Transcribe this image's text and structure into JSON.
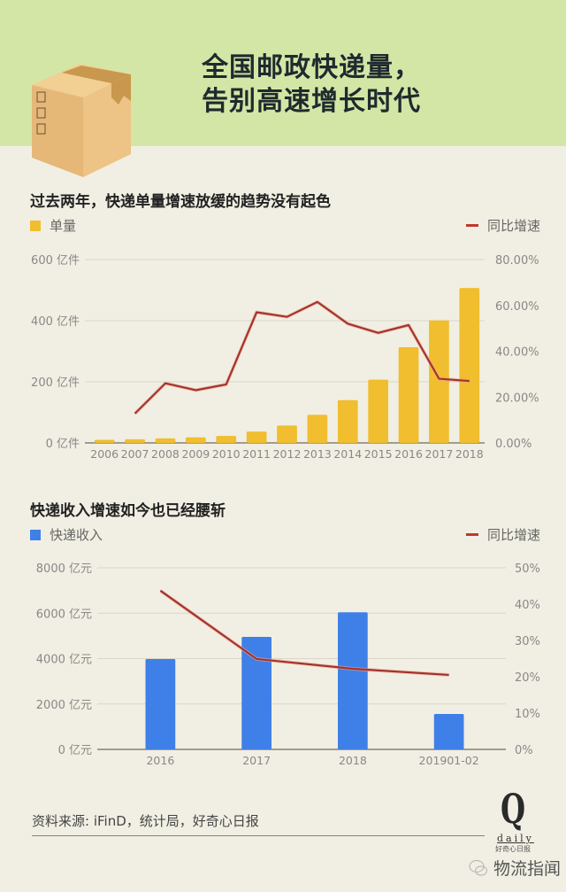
{
  "header": {
    "title_line1": "全国邮政快递量，",
    "title_line2": "告别高速增长时代",
    "bg_color": "#d4e6a6"
  },
  "chart1": {
    "section_title": "过去两年，快递单量增速放缓的趋势没有起色",
    "legend_bar": "单量",
    "legend_line": "同比增速"
  },
  "chart2": {
    "section_title": "快递收入增速如今也已经腰斩",
    "legend_bar": "快递收入",
    "legend_line": "同比增速"
  },
  "footer": {
    "source": "资料来源: iFinD，统计局，好奇心日报",
    "logo_letter": "Q",
    "logo_word": "daily",
    "logo_cn": "好奇心日报",
    "watermark": "物流指闻"
  },
  "chart_data": [
    {
      "type": "bar",
      "title": "过去两年，快递单量增速放缓的趋势没有起色",
      "categories": [
        "2006",
        "2007",
        "2008",
        "2009",
        "2010",
        "2011",
        "2012",
        "2013",
        "2014",
        "2015",
        "2016",
        "2017",
        "2018"
      ],
      "series": [
        {
          "name": "单量",
          "type": "bar",
          "axis": "left",
          "color": "#f0be2e",
          "values": [
            10,
            12,
            15,
            18,
            23,
            37,
            57,
            92,
            140,
            207,
            313,
            401,
            507
          ]
        },
        {
          "name": "同比增速",
          "type": "line",
          "axis": "right",
          "color": "#a3342c",
          "values": [
            null,
            12.8,
            26.0,
            23.0,
            25.5,
            57.0,
            55.0,
            61.5,
            52.0,
            48.0,
            51.4,
            28.0,
            27.0
          ]
        }
      ],
      "left_axis": {
        "ticks": [
          "0 亿件",
          "200 亿件",
          "400 亿件",
          "600 亿件"
        ],
        "ylim": [
          0,
          600
        ]
      },
      "right_axis": {
        "ticks": [
          "0.00%",
          "20.00%",
          "40.00%",
          "60.00%",
          "80.00%"
        ],
        "ylim": [
          0,
          80
        ]
      },
      "xlabel": "",
      "ylabel": "",
      "grid": true,
      "legend_position": "top"
    },
    {
      "type": "bar",
      "title": "快递收入增速如今也已经腰斩",
      "categories": [
        "2016",
        "2017",
        "2018",
        "201901-02"
      ],
      "series": [
        {
          "name": "快递收入",
          "type": "bar",
          "axis": "left",
          "color": "#3f7fe8",
          "values": [
            3980,
            4957,
            6038,
            1560
          ]
        },
        {
          "name": "同比增速",
          "type": "line",
          "axis": "right",
          "color": "#a3342c",
          "values": [
            43.7,
            24.9,
            22.2,
            20.5
          ]
        }
      ],
      "left_axis": {
        "ticks": [
          "0 亿元",
          "2000 亿元",
          "4000 亿元",
          "6000 亿元",
          "8000 亿元"
        ],
        "ylim": [
          0,
          8000
        ]
      },
      "right_axis": {
        "ticks": [
          "0%",
          "10%",
          "20%",
          "30%",
          "40%",
          "50%"
        ],
        "ylim": [
          0,
          50
        ]
      },
      "xlabel": "",
      "ylabel": "",
      "grid": true,
      "legend_position": "top"
    }
  ]
}
